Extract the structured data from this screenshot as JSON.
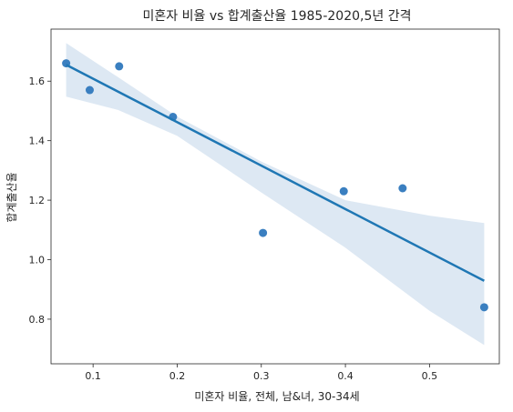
{
  "chart_data": {
    "type": "scatter",
    "title": "미혼자 비율 vs 합계출산율 1985-2020,5년 간격",
    "xlabel": "미혼자 비율, 전체, 남&녀, 30-34세",
    "ylabel": "합계출산율",
    "xlim": [
      0.05,
      0.583
    ],
    "ylim": [
      0.65,
      1.775
    ],
    "xticks": [
      0.1,
      0.2,
      0.3,
      0.4,
      0.5
    ],
    "yticks": [
      0.8,
      1.0,
      1.2,
      1.4,
      1.6
    ],
    "xtick_labels": [
      "0.1",
      "0.2",
      "0.3",
      "0.4",
      "0.5"
    ],
    "ytick_labels": [
      "0.8",
      "1.0",
      "1.2",
      "1.4",
      "1.6"
    ],
    "grid": false,
    "series": [
      {
        "points": [
          {
            "x": 0.068,
            "y": 1.66
          },
          {
            "x": 0.096,
            "y": 1.57
          },
          {
            "x": 0.131,
            "y": 1.65
          },
          {
            "x": 0.195,
            "y": 1.48
          },
          {
            "x": 0.302,
            "y": 1.09
          },
          {
            "x": 0.398,
            "y": 1.23
          },
          {
            "x": 0.468,
            "y": 1.24
          },
          {
            "x": 0.565,
            "y": 0.84
          }
        ]
      }
    ],
    "regression": {
      "x": [
        0.068,
        0.565
      ],
      "y": [
        1.655,
        0.929
      ]
    },
    "confidence_band": {
      "x": [
        0.068,
        0.13,
        0.2,
        0.3,
        0.4,
        0.5,
        0.565
      ],
      "upper": [
        1.728,
        1.613,
        1.481,
        1.33,
        1.2,
        1.148,
        1.123
      ],
      "lower": [
        1.548,
        1.503,
        1.416,
        1.226,
        1.04,
        0.828,
        0.713
      ]
    },
    "colors": {
      "points": "#3a7fc0",
      "line": "#1f77b4",
      "band": "#dde8f3",
      "axis": "#262626"
    }
  }
}
